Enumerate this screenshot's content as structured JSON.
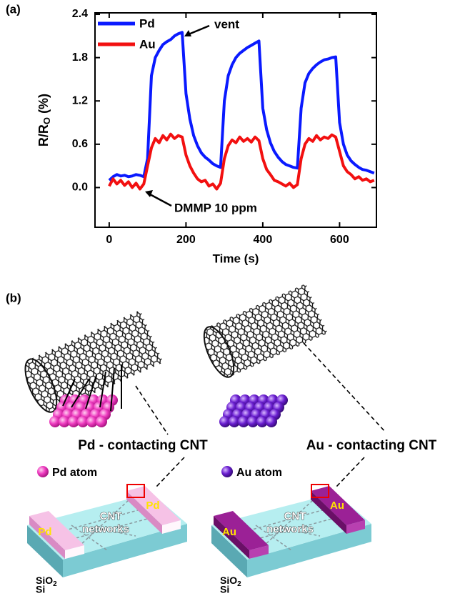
{
  "chart_data": {
    "type": "line",
    "panel_label": "(a)",
    "xlabel": "Time (s)",
    "ylabel_parts": [
      "R/R",
      "O",
      " (%)"
    ],
    "annotations": [
      "vent",
      "DMMP 10 ppm"
    ],
    "x": [
      0,
      10,
      20,
      30,
      40,
      50,
      60,
      70,
      80,
      90,
      100,
      110,
      120,
      130,
      140,
      150,
      160,
      170,
      180,
      190,
      200,
      210,
      220,
      230,
      240,
      250,
      260,
      270,
      280,
      290,
      300,
      310,
      320,
      330,
      340,
      350,
      360,
      370,
      380,
      390,
      400,
      410,
      420,
      430,
      440,
      450,
      460,
      470,
      480,
      490,
      500,
      510,
      520,
      530,
      540,
      550,
      560,
      570,
      580,
      590,
      600,
      610,
      620,
      630,
      640,
      650,
      660,
      670,
      680,
      690
    ],
    "series": [
      {
        "name": "Pd",
        "color": "#0a1aff",
        "values": [
          0.1,
          0.15,
          0.18,
          0.16,
          0.17,
          0.15,
          0.16,
          0.18,
          0.17,
          0.15,
          0.4,
          1.55,
          1.8,
          1.9,
          1.98,
          2.02,
          2.05,
          2.1,
          2.13,
          2.15,
          1.3,
          0.95,
          0.72,
          0.58,
          0.48,
          0.42,
          0.38,
          0.33,
          0.3,
          0.28,
          1.2,
          1.55,
          1.7,
          1.8,
          1.86,
          1.9,
          1.94,
          1.97,
          2.0,
          2.03,
          1.1,
          0.8,
          0.62,
          0.5,
          0.42,
          0.36,
          0.32,
          0.3,
          0.28,
          0.27,
          1.1,
          1.45,
          1.58,
          1.65,
          1.7,
          1.74,
          1.77,
          1.78,
          1.8,
          1.81,
          0.9,
          0.6,
          0.45,
          0.37,
          0.32,
          0.28,
          0.25,
          0.24,
          0.22,
          0.2
        ]
      },
      {
        "name": "Au",
        "color": "#f21010",
        "values": [
          0.02,
          0.12,
          0.05,
          0.1,
          0.03,
          0.08,
          0.0,
          0.06,
          -0.02,
          0.05,
          0.3,
          0.55,
          0.68,
          0.62,
          0.72,
          0.66,
          0.74,
          0.68,
          0.72,
          0.7,
          0.45,
          0.3,
          0.2,
          0.12,
          0.08,
          0.1,
          0.02,
          0.05,
          -0.02,
          0.06,
          0.4,
          0.58,
          0.66,
          0.62,
          0.7,
          0.64,
          0.68,
          0.63,
          0.7,
          0.65,
          0.4,
          0.25,
          0.18,
          0.1,
          0.08,
          0.05,
          0.02,
          0.06,
          0.0,
          0.04,
          0.4,
          0.6,
          0.68,
          0.64,
          0.72,
          0.66,
          0.7,
          0.68,
          0.73,
          0.7,
          0.5,
          0.3,
          0.22,
          0.18,
          0.12,
          0.15,
          0.1,
          0.12,
          0.08,
          0.1
        ]
      }
    ],
    "xlim": [
      -37,
      696
    ],
    "ylim": [
      -0.55,
      2.42
    ],
    "xticks": [
      0,
      200,
      400,
      600
    ],
    "yticks": [
      {
        "value": 0,
        "label": "0.0"
      },
      0.6,
      1.2,
      1.8,
      2.4
    ],
    "legend": "upper left"
  },
  "panel_b": {
    "label": "(b)",
    "devices": [
      {
        "caption": "Pd - contacting CNT",
        "atom_legend": "Pd atom",
        "electrode": "Pd",
        "network": [
          "CNT",
          "networks"
        ],
        "layers": [
          "SiO",
          "2",
          "Si"
        ]
      },
      {
        "caption": "Au - contacting CNT",
        "atom_legend": "Au atom",
        "electrode": "Au",
        "network": [
          "CNT",
          "networks"
        ],
        "layers": [
          "SiO",
          "2",
          "Si"
        ]
      }
    ]
  }
}
